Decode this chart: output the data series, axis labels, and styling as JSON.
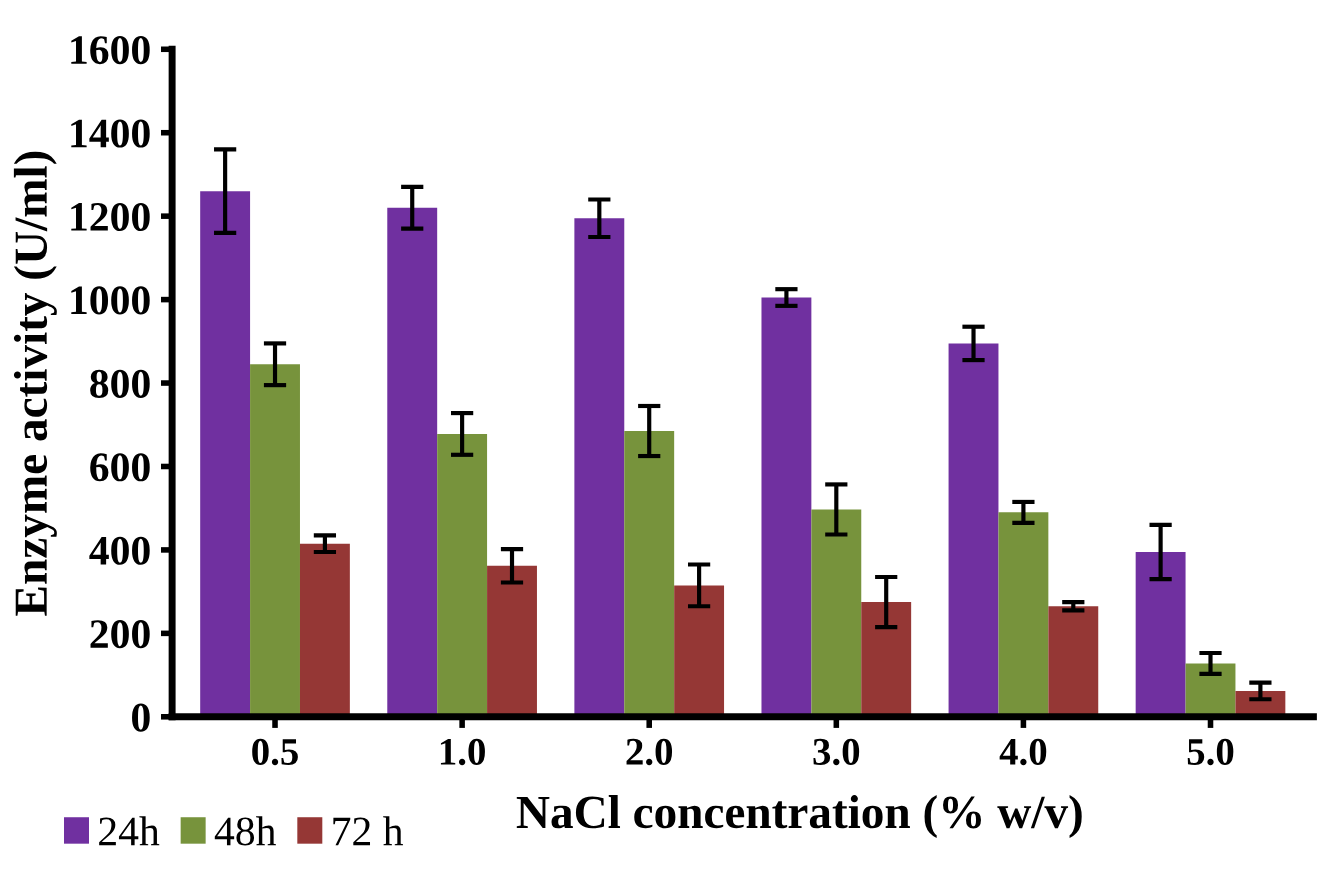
{
  "chart_data": {
    "type": "bar",
    "xlabel": "NaCl concentration (% w/v)",
    "ylabel": "Enzyme activity (U/ml)",
    "categories": [
      "0.5",
      "1.0",
      "2.0",
      "3.0",
      "4.0",
      "5.0"
    ],
    "series": [
      {
        "name": "24h",
        "color": "#7030a0",
        "values": [
          1260,
          1220,
          1195,
          1005,
          895,
          395
        ],
        "errors": [
          100,
          50,
          45,
          20,
          40,
          65
        ]
      },
      {
        "name": "48h",
        "color": "#77933c",
        "values": [
          845,
          678,
          685,
          497,
          490,
          128
        ],
        "errors": [
          50,
          50,
          60,
          60,
          25,
          25
        ]
      },
      {
        "name": "72 h",
        "color": "#953735",
        "values": [
          415,
          362,
          315,
          275,
          265,
          62
        ],
        "errors": [
          20,
          40,
          50,
          60,
          10,
          20
        ]
      }
    ],
    "ylim": [
      0,
      1600
    ],
    "yticks": [
      0,
      200,
      400,
      600,
      800,
      1000,
      1200,
      1400,
      1600
    ],
    "grid": false,
    "legend": "bottom left"
  }
}
